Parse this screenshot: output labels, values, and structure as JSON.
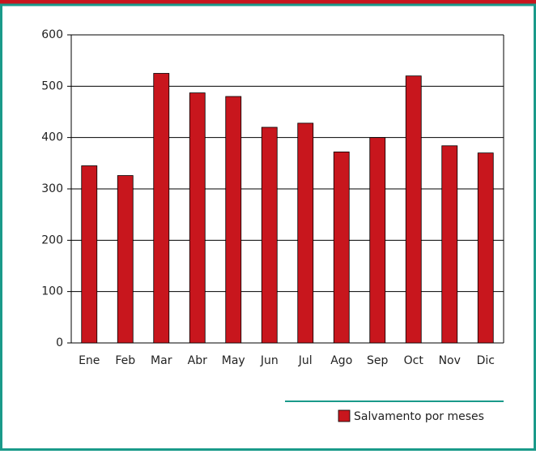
{
  "chart_data": {
    "type": "bar",
    "categories": [
      "Ene",
      "Feb",
      "Mar",
      "Abr",
      "May",
      "Jun",
      "Jul",
      "Ago",
      "Sep",
      "Oct",
      "Nov",
      "Dic"
    ],
    "series": [
      {
        "name": "Salvamento por meses",
        "color": "#c8161d",
        "values": [
          345,
          326,
          525,
          487,
          480,
          420,
          428,
          372,
          400,
          520,
          384,
          370
        ]
      }
    ],
    "ylim": [
      0,
      600
    ],
    "yticks": [
      0,
      100,
      200,
      300,
      400,
      500,
      600
    ],
    "grid": true,
    "legend": "bottom-right"
  }
}
